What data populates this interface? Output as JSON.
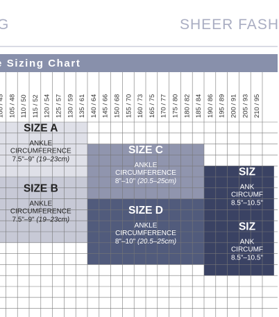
{
  "header": {
    "brand_partial": "G",
    "collection": "SHEER FASH",
    "banner_title": "e Sizing Chart"
  },
  "colors": {
    "banner": "#8890ab",
    "size_a": "#dfe0e8",
    "size_b": "#c7c9d6",
    "size_c": "#9095ae",
    "size_d": "#515b7c",
    "size_e": "#3a4263",
    "grid": "#777777"
  },
  "chart_data": {
    "type": "table",
    "columns": [
      "100 / 45",
      "105 / 48",
      "110 / 50",
      "115 / 52",
      "120 / 54",
      "125 / 57",
      "130 / 59",
      "135 / 61",
      "140 / 64",
      "145 / 66",
      "150 / 68",
      "155 / 70",
      "160 / 73",
      "165 / 75",
      "170 / 77",
      "175 / 80",
      "180 / 82",
      "185 / 84",
      "190 / 86",
      "195 / 89",
      "200 / 91",
      "205 / 93",
      "210 / 95"
    ],
    "zones": [
      {
        "key": "a",
        "label": "SIZE A",
        "subtitle_1": "ANKLE",
        "subtitle_2": "CIRCUMFERENCE",
        "range_in": "7.5\"–9\"",
        "range_cm": "(19–23cm)",
        "col_start": 0,
        "col_end": 8,
        "row_start": 0,
        "row_end": 5
      },
      {
        "key": "b",
        "label": "SIZE B",
        "subtitle_1": "ANKLE",
        "subtitle_2": "CIRCUMFERENCE",
        "range_in": "7.5\"–9\"",
        "range_cm": "(19–23cm)",
        "col_start": 0,
        "col_end": 8,
        "row_start": 5,
        "row_end": 11
      },
      {
        "key": "c",
        "label": "SIZE C",
        "subtitle_1": "ANKLE",
        "subtitle_2": "CIRCUMFERENCE",
        "range_in": "8\"–10\"",
        "range_cm": "(20.5–25cm)",
        "col_start": 8,
        "col_end": 18,
        "row_start": 2,
        "row_end": 7
      },
      {
        "key": "d",
        "label": "SIZE D",
        "subtitle_1": "ANKLE",
        "subtitle_2": "CIRCUMFERENCE",
        "range_in": "8\"–10\"",
        "range_cm": "(20.5–25cm)",
        "col_start": 8,
        "col_end": 18,
        "row_start": 7,
        "row_end": 13
      },
      {
        "key": "e1",
        "label": "SIZ",
        "subtitle_1": "ANK",
        "subtitle_2": "CIRCUMF",
        "range_in": "8.5\"–10.5\"",
        "range_cm": "",
        "col_start": 18,
        "col_end": 24,
        "row_start": 4,
        "row_end": 9
      },
      {
        "key": "e2",
        "label": "SIZ",
        "subtitle_1": "ANK",
        "subtitle_2": "CIRCUMF",
        "range_in": "8.5\"–10.5\"",
        "range_cm": "",
        "col_start": 18,
        "col_end": 24,
        "row_start": 9,
        "row_end": 14
      }
    ]
  }
}
